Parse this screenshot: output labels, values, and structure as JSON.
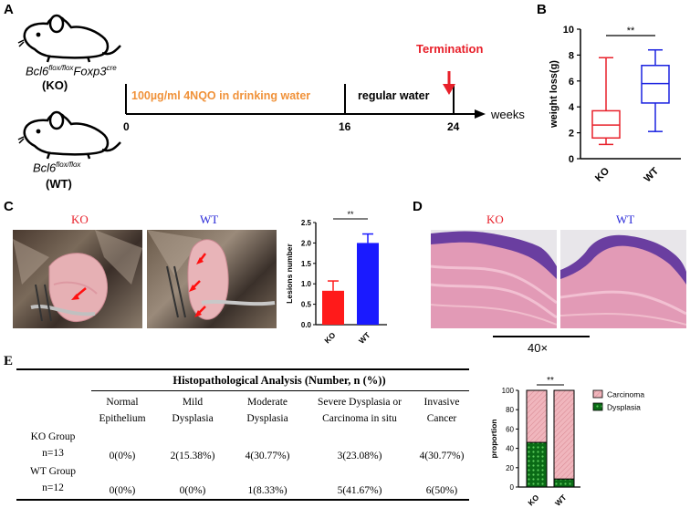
{
  "panels": {
    "a": "A",
    "b": "B",
    "c": "C",
    "d": "D",
    "e": "E"
  },
  "panel_a": {
    "ko_genotype_base": "Bcl6",
    "ko_genotype_sup1": "flox/flox",
    "ko_genotype_mid": "Foxp3",
    "ko_genotype_sup2": "cre",
    "ko_label": "(KO)",
    "wt_genotype_base": "Bcl6",
    "wt_genotype_sup": "flox/flox",
    "wt_label": "(WT)",
    "termination": "Termination",
    "treatment": "100µg/ml 4NQO in drinking water",
    "regular": "regular water",
    "ticks": [
      "0",
      "16",
      "24"
    ],
    "unit": "weeks",
    "colors": {
      "treatment": "#f0923a",
      "termination": "#e8202a"
    }
  },
  "panel_c": {
    "ko_title": "KO",
    "wt_title": "WT",
    "colors": {
      "ko": "#e8202a",
      "wt": "#2828d8"
    }
  },
  "panel_d": {
    "ko_title": "KO",
    "wt_title": "WT",
    "magnification": "40×"
  },
  "chart_data": [
    {
      "type": "box",
      "panel": "B",
      "ylabel": "weight loss(g)",
      "categories": [
        "KO",
        "WT"
      ],
      "ylim": [
        0,
        10
      ],
      "yticks": [
        "0",
        "2",
        "4",
        "6",
        "8",
        "10"
      ],
      "boxes": [
        {
          "name": "KO",
          "min": 1.1,
          "q1": 1.6,
          "median": 2.6,
          "q3": 3.7,
          "max": 7.8,
          "color": "#e8202a"
        },
        {
          "name": "WT",
          "min": 2.1,
          "q1": 4.3,
          "median": 5.8,
          "q3": 7.2,
          "max": 8.4,
          "color": "#1a22e0"
        }
      ],
      "significance": "**"
    },
    {
      "type": "bar",
      "panel": "C",
      "ylabel": "Lesions number",
      "categories": [
        "KO",
        "WT"
      ],
      "values": [
        0.83,
        2.0
      ],
      "errors": [
        0.24,
        0.22
      ],
      "ylim": [
        0,
        2.5
      ],
      "yticks": [
        "0.0",
        "0.5",
        "1.0",
        "1.5",
        "2.0",
        "2.5"
      ],
      "colors": [
        "#ff1a1a",
        "#1a1aff"
      ],
      "significance": "**"
    },
    {
      "type": "stacked-bar",
      "panel": "E",
      "ylabel": "proportion",
      "categories": [
        "KO",
        "WT"
      ],
      "ylim": [
        0,
        100
      ],
      "yticks": [
        "0",
        "20",
        "40",
        "60",
        "80",
        "100"
      ],
      "series": [
        {
          "name": "Dysplasia",
          "values": [
            46.15,
            8.33
          ]
        },
        {
          "name": "Carcinoma",
          "values": [
            53.85,
            91.67
          ]
        }
      ],
      "legend": [
        "Carcinoma",
        "Dysplasia"
      ],
      "legend_placement": "right",
      "significance": "**"
    },
    {
      "type": "table",
      "panel": "E",
      "title": "Histopathological Analysis (Number, n (%))",
      "columns": [
        {
          "line1": "Normal",
          "line2": "Epithelium"
        },
        {
          "line1": "Mild",
          "line2": "Dysplasia"
        },
        {
          "line1": "Moderate",
          "line2": "Dysplasia"
        },
        {
          "line1": "Severe Dysplasia or",
          "line2": "Carcinoma in situ"
        },
        {
          "line1": "Invasive",
          "line2": "Cancer"
        }
      ],
      "rows": [
        {
          "group": "KO Group",
          "n": "n=13",
          "cells": [
            "0(0%)",
            "2(15.38%)",
            "4(30.77%)",
            "3(23.08%)",
            "4(30.77%)"
          ]
        },
        {
          "group": "WT Group",
          "n": "n=12",
          "cells": [
            "0(0%)",
            "0(0%)",
            "1(8.33%)",
            "5(41.67%)",
            "6(50%)"
          ]
        }
      ]
    }
  ]
}
